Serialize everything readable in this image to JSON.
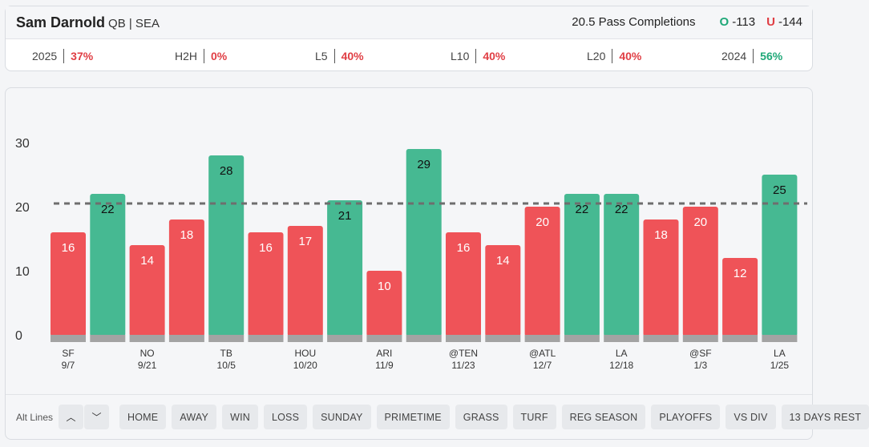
{
  "header": {
    "player_name": "Sam Darnold",
    "position_team": "QB | SEA",
    "prop_label": "20.5 Pass Completions",
    "over_symbol": "O",
    "over_odds": "-113",
    "under_symbol": "U",
    "under_odds": "-144"
  },
  "stats": [
    {
      "label": "2025",
      "value": "37%",
      "color": "red"
    },
    {
      "label": "H2H",
      "value": "0%",
      "color": "red"
    },
    {
      "label": "L5",
      "value": "40%",
      "color": "red"
    },
    {
      "label": "L10",
      "value": "40%",
      "color": "red"
    },
    {
      "label": "L20",
      "value": "40%",
      "color": "red"
    },
    {
      "label": "2024",
      "value": "56%",
      "color": "green"
    }
  ],
  "colors": {
    "over": "#46b992",
    "under": "#ef5358",
    "base": "#a3a3a3",
    "line": "#6e6e6e"
  },
  "chart_data": {
    "type": "bar",
    "title": "20.5 Pass Completions",
    "line_value": 20.5,
    "ylim": [
      0,
      30
    ],
    "yticks": [
      0,
      10,
      20,
      30
    ],
    "values": [
      16,
      22,
      14,
      18,
      28,
      16,
      17,
      21,
      10,
      29,
      16,
      14,
      20,
      22,
      22,
      18,
      20,
      12,
      25
    ],
    "x_labels": [
      {
        "index": 0,
        "opponent": "SF",
        "date": "9/7"
      },
      {
        "index": 2,
        "opponent": "NO",
        "date": "9/21"
      },
      {
        "index": 4,
        "opponent": "TB",
        "date": "10/5"
      },
      {
        "index": 6,
        "opponent": "HOU",
        "date": "10/20"
      },
      {
        "index": 8,
        "opponent": "ARI",
        "date": "11/9"
      },
      {
        "index": 10,
        "opponent": "@TEN",
        "date": "11/23"
      },
      {
        "index": 12,
        "opponent": "@ATL",
        "date": "12/7"
      },
      {
        "index": 14,
        "opponent": "LA",
        "date": "12/18"
      },
      {
        "index": 16,
        "opponent": "@SF",
        "date": "1/3"
      },
      {
        "index": 18,
        "opponent": "LA",
        "date": "1/25"
      }
    ]
  },
  "filters": {
    "alt_lines_label": "Alt Lines",
    "up_arrow": "︿",
    "down_arrow": "﹀",
    "chips": [
      "HOME",
      "AWAY",
      "WIN",
      "LOSS",
      "SUNDAY",
      "PRIMETIME",
      "GRASS",
      "TURF",
      "REG SEASON",
      "PLAYOFFS",
      "VS DIV",
      "13 DAYS REST"
    ]
  }
}
